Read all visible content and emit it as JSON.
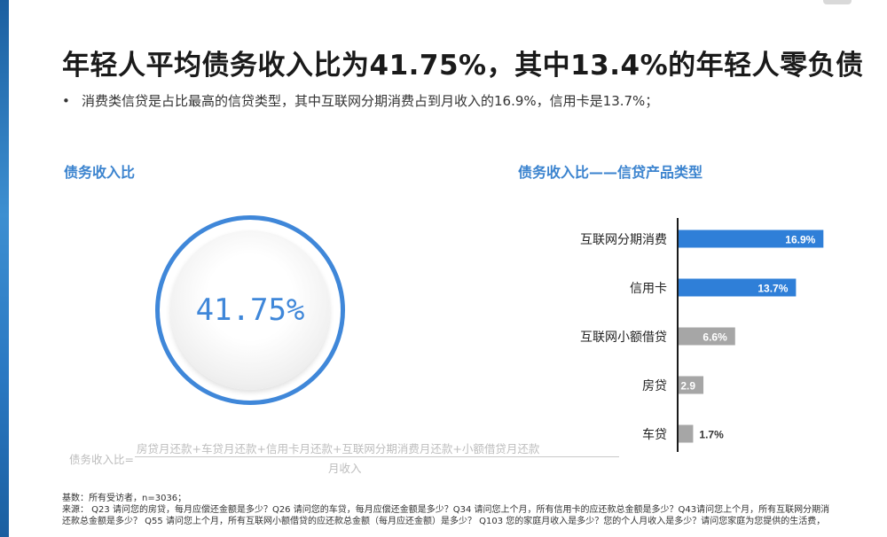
{
  "title": "年轻人平均债务收入比为41.75%，其中13.4%的年轻人零负债",
  "bullet": "•",
  "bullet_text": "消费类信贷是占比最高的信贷类型，其中互联网分期消费占到月收入的16.9%，信用卡是13.7%；",
  "left_section": {
    "title": "债务收入比",
    "ring_value": "41.75%",
    "formula_lhs": "债务收入比=",
    "formula_numerator": "房贷月还款+车贷月还款+信用卡月还款+互联网分期消费月还款+小额借贷月还款",
    "formula_denominator": "月收入"
  },
  "right_section": {
    "title": "债务收入比——信贷产品类型"
  },
  "colors": {
    "accent": "#3f87d9",
    "primary_bar": "#2f7fd8",
    "secondary_bar": "#a6a6a6"
  },
  "chart_data": {
    "type": "bar",
    "orientation": "horizontal",
    "categories": [
      "互联网分期消费",
      "信用卡",
      "互联网小额借贷",
      "房贷",
      "车贷"
    ],
    "values": [
      16.9,
      13.7,
      6.6,
      2.9,
      1.7
    ],
    "value_labels": [
      "16.9%",
      "13.7%",
      "6.6%",
      "2.9",
      "1.7%"
    ],
    "bar_colors": [
      "#2f7fd8",
      "#2f7fd8",
      "#a6a6a6",
      "#a6a6a6",
      "#a6a6a6"
    ],
    "xlim": [
      0,
      17.8
    ],
    "label_outside": [
      false,
      false,
      false,
      false,
      true
    ]
  },
  "footer": {
    "line1": "基数：所有受访者，n=3036；",
    "line2": "来源： Q23 请问您的房贷，每月应偿还金额是多少？Q26 请问您的车贷，每月应偿还金额是多少？Q34 请问您上个月，所有信用卡的应还款总金额是多少？Q43请问您上个月，所有互联网分期消",
    "line3": "还款总金额是多少？ Q55 请问您上个月，所有互联网小额借贷的应还款总金额（每月应还金额）是多少？ Q103 您的家庭月收入是多少？您的个人月收入是多少？请问您家庭为您提供的生活费，"
  }
}
